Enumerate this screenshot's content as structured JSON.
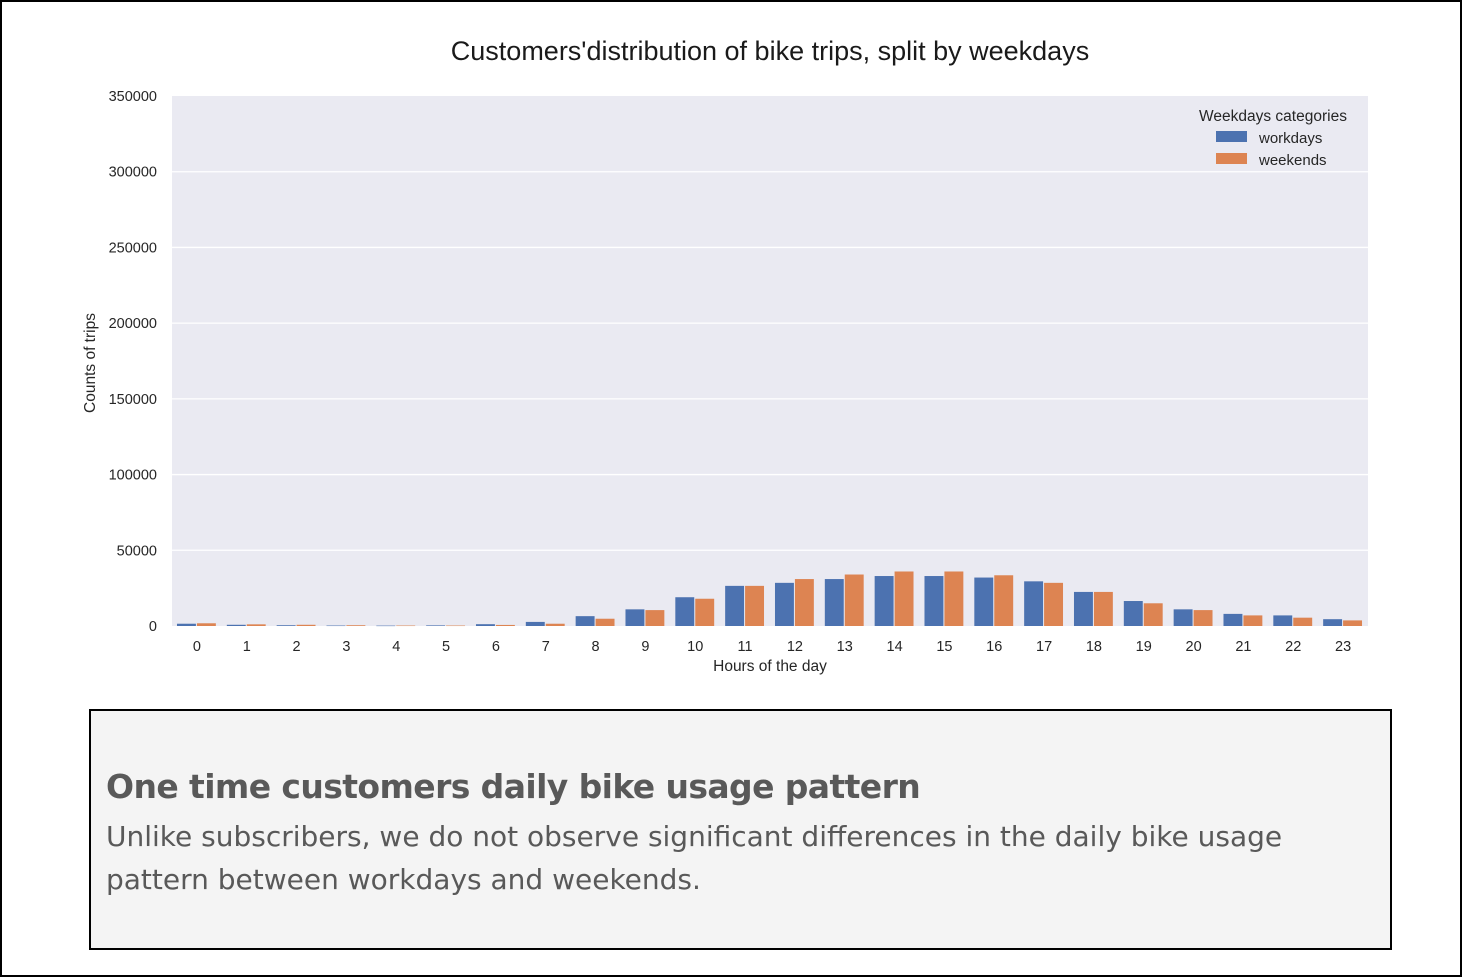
{
  "chart_data": {
    "type": "bar",
    "title": "Customers'distribution of bike trips, split by weekdays",
    "xlabel": "Hours of the day",
    "ylabel": "Counts of trips",
    "ylim": [
      0,
      350000
    ],
    "yticks": [
      "0",
      "50000",
      "100000",
      "150000",
      "200000",
      "250000",
      "300000",
      "350000"
    ],
    "categories": [
      "0",
      "1",
      "2",
      "3",
      "4",
      "5",
      "6",
      "7",
      "8",
      "9",
      "10",
      "11",
      "12",
      "13",
      "14",
      "15",
      "16",
      "17",
      "18",
      "19",
      "20",
      "21",
      "22",
      "23"
    ],
    "legend": {
      "title": "Weekdays categories",
      "position": "top-right"
    },
    "grid": true,
    "series": [
      {
        "name": "workdays",
        "color": "#4c72b0",
        "values": [
          1500,
          800,
          500,
          300,
          250,
          400,
          1200,
          2700,
          6500,
          11000,
          19000,
          26500,
          28500,
          31000,
          33000,
          33000,
          32000,
          29500,
          22500,
          16500,
          11000,
          8000,
          7000,
          4500
        ]
      },
      {
        "name": "weekends",
        "color": "#dd8452",
        "values": [
          1800,
          1100,
          800,
          500,
          300,
          300,
          700,
          1500,
          4800,
          10500,
          18000,
          26500,
          31000,
          34000,
          36000,
          36000,
          33500,
          28500,
          22500,
          15000,
          10500,
          7000,
          5500,
          3700
        ]
      }
    ]
  },
  "note": {
    "heading": "One time customers daily bike usage pattern",
    "body": "Unlike subscribers, we do not observe significant differences in the daily bike usage pattern between workdays and weekends."
  }
}
